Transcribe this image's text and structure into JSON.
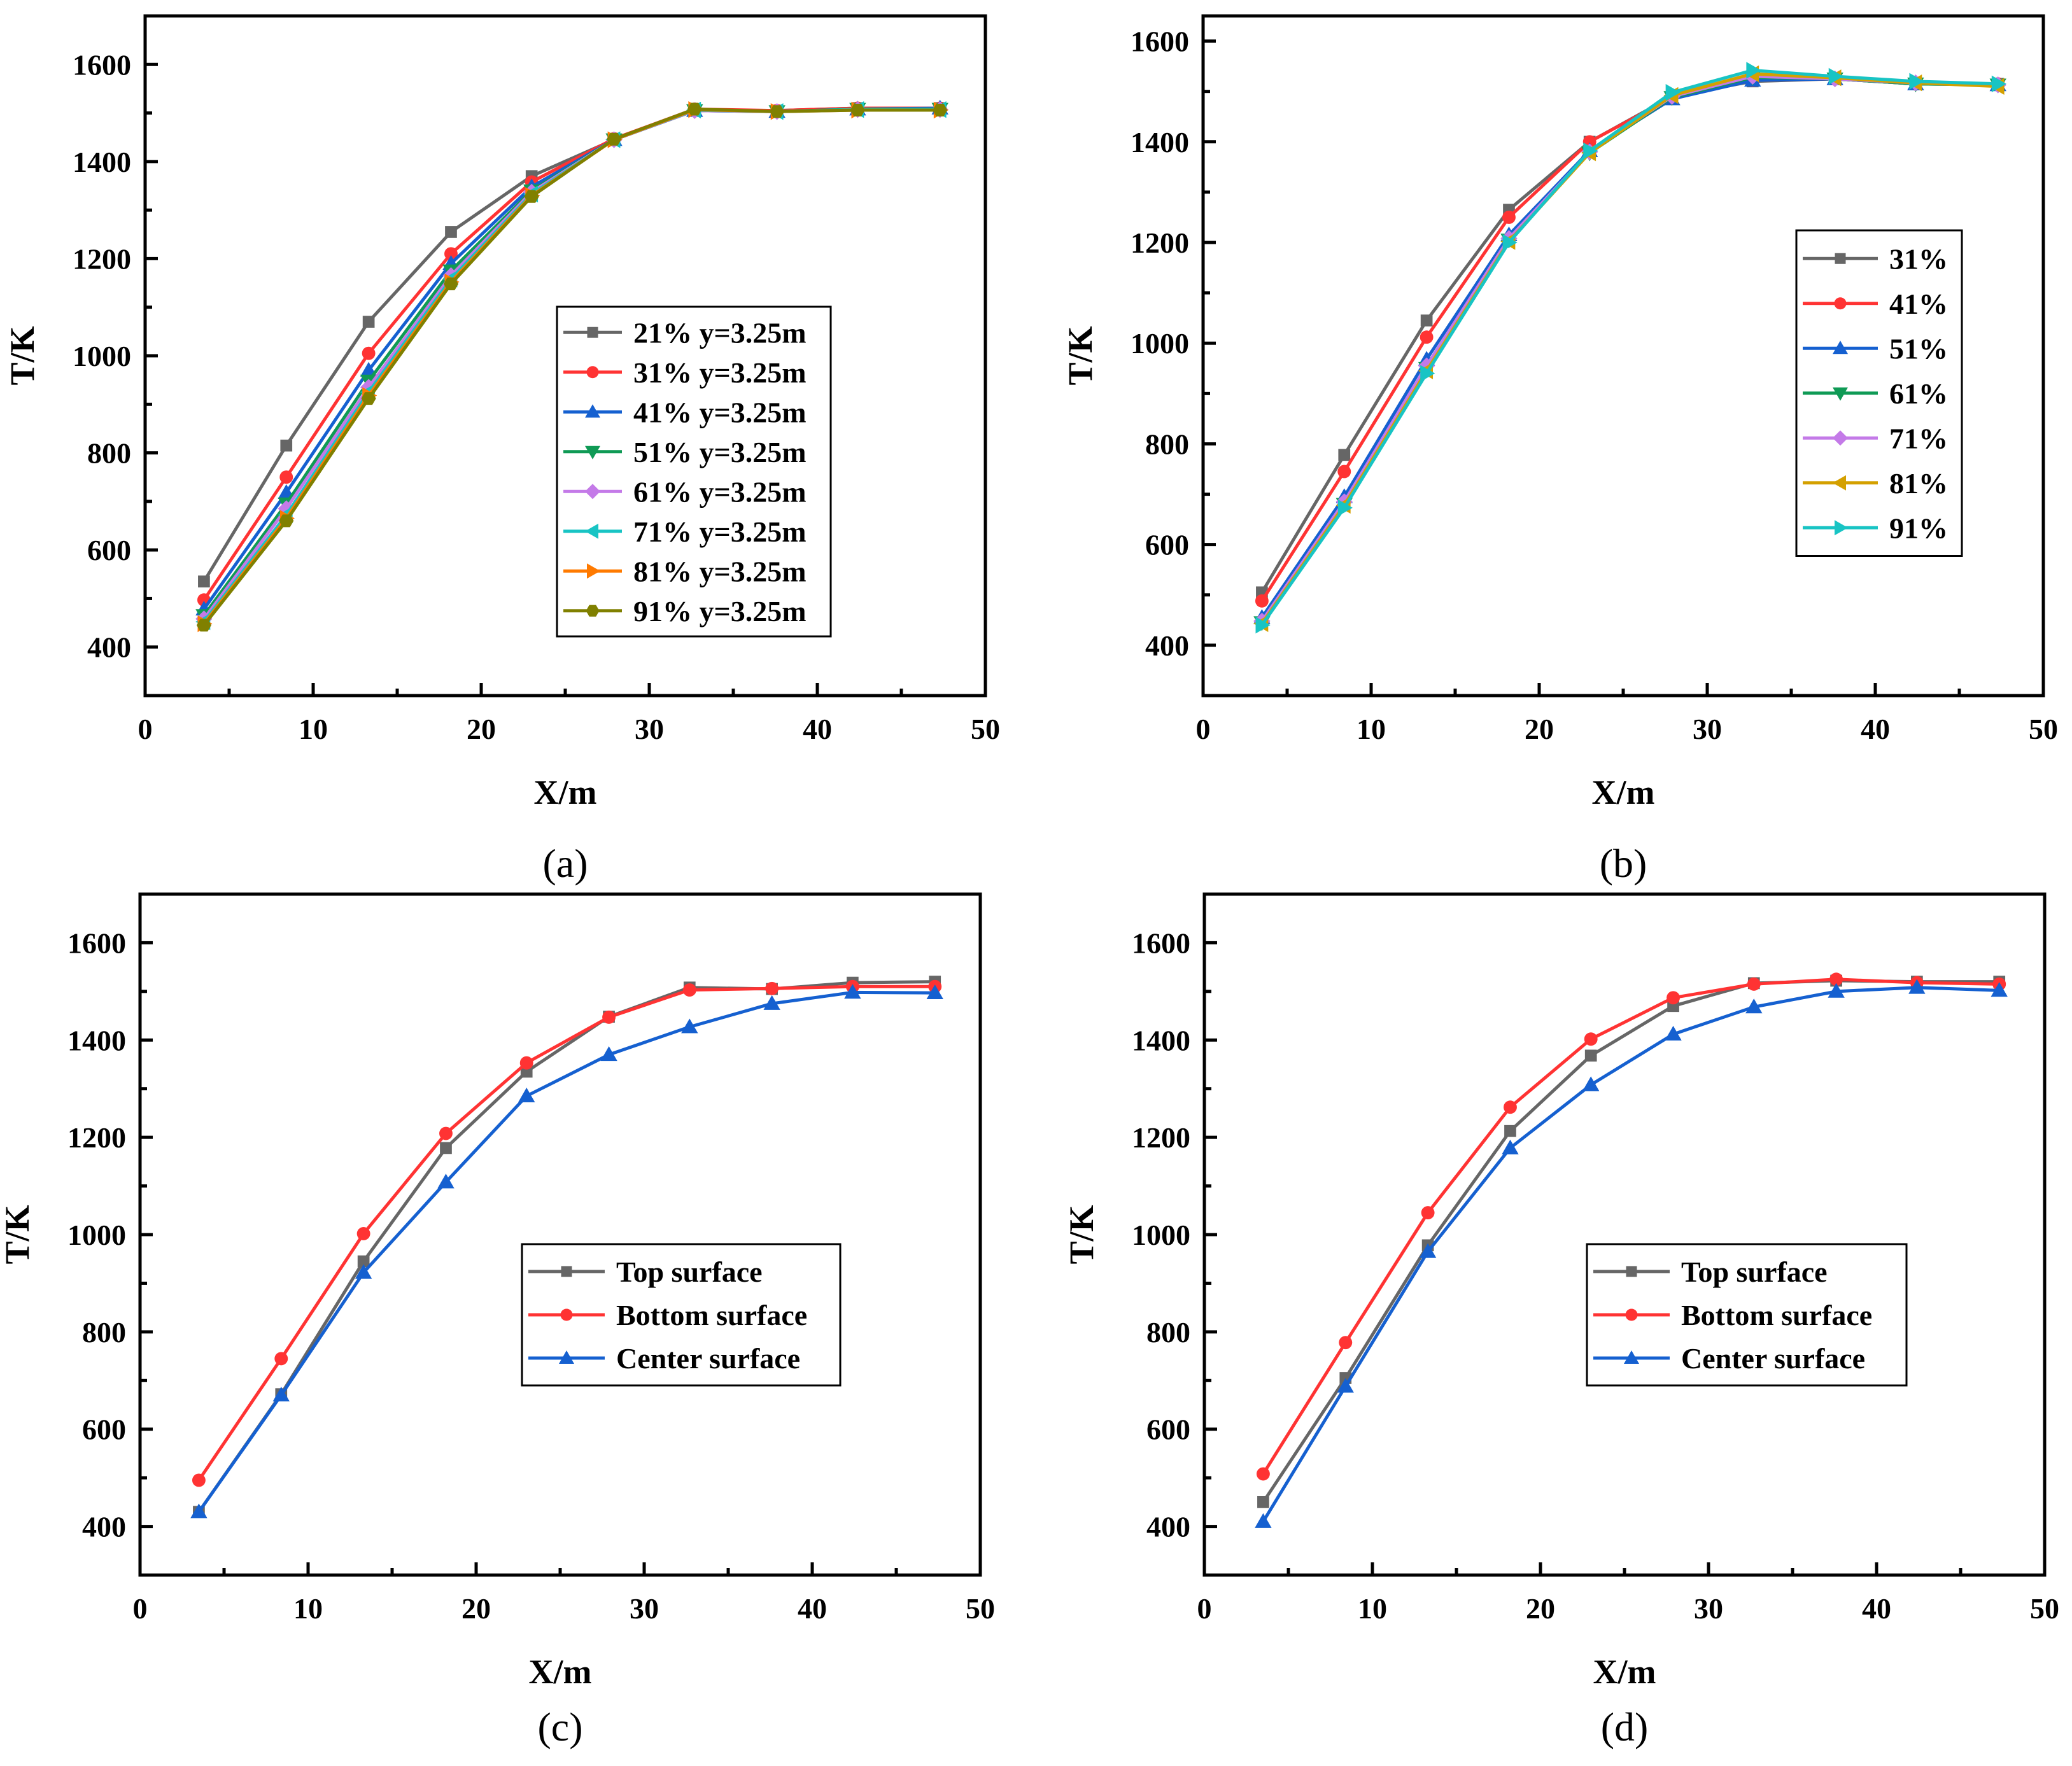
{
  "chart_data": [
    {
      "id": "a",
      "type": "line",
      "panel_label": "(a)",
      "xlabel": "X/m",
      "ylabel": "T/K",
      "xlim": [
        0,
        50
      ],
      "ylim": [
        300,
        1700
      ],
      "xticks": [
        "0",
        "10",
        "20",
        "30",
        "40",
        "50"
      ],
      "yticks": [
        "400",
        "600",
        "800",
        "1000",
        "1200",
        "1400",
        "1600"
      ],
      "legend_position": "center-right",
      "x": [
        3.5,
        8.4,
        13.3,
        18.2,
        23.0,
        27.9,
        32.7,
        37.6,
        42.4,
        47.3
      ],
      "series": [
        {
          "name": "21% y=3.25m",
          "color": "#666666",
          "marker": "square",
          "values": [
            535,
            815,
            1070,
            1255,
            1370,
            1445,
            1505,
            1505,
            1510,
            1510
          ]
        },
        {
          "name": "31% y=3.25m",
          "color": "#ff3333",
          "marker": "circle",
          "values": [
            497,
            750,
            1005,
            1210,
            1358,
            1447,
            1508,
            1505,
            1510,
            1510
          ]
        },
        {
          "name": "41% y=3.25m",
          "color": "#1560d0",
          "marker": "triangle-up",
          "values": [
            478,
            718,
            970,
            1190,
            1348,
            1445,
            1505,
            1503,
            1508,
            1510
          ]
        },
        {
          "name": "51% y=3.25m",
          "color": "#0f9a55",
          "marker": "triangle-down",
          "values": [
            465,
            695,
            948,
            1175,
            1340,
            1445,
            1505,
            1503,
            1508,
            1508
          ]
        },
        {
          "name": "61% y=3.25m",
          "color": "#c47ae8",
          "marker": "diamond",
          "values": [
            458,
            685,
            935,
            1165,
            1337,
            1445,
            1505,
            1503,
            1507,
            1507
          ]
        },
        {
          "name": "71% y=3.25m",
          "color": "#18c4c4",
          "marker": "triangle-left",
          "values": [
            452,
            672,
            925,
            1158,
            1333,
            1445,
            1506,
            1503,
            1507,
            1507
          ]
        },
        {
          "name": "81% y=3.25m",
          "color": "#ff7a00",
          "marker": "triangle-right",
          "values": [
            448,
            665,
            918,
            1152,
            1330,
            1445,
            1507,
            1503,
            1506,
            1506
          ]
        },
        {
          "name": "91% y=3.25m",
          "color": "#808000",
          "marker": "hexagon",
          "values": [
            445,
            660,
            912,
            1148,
            1328,
            1446,
            1508,
            1503,
            1506,
            1506
          ]
        }
      ]
    },
    {
      "id": "b",
      "type": "line",
      "panel_label": "(b)",
      "xlabel": "X/m",
      "ylabel": "T/K",
      "xlim": [
        0,
        50
      ],
      "ylim": [
        300,
        1650
      ],
      "xticks": [
        "0",
        "10",
        "20",
        "30",
        "40",
        "50"
      ],
      "yticks": [
        "400",
        "600",
        "800",
        "1000",
        "1200",
        "1400",
        "1600"
      ],
      "legend_position": "center-right",
      "x": [
        3.5,
        8.4,
        13.3,
        18.2,
        23.0,
        27.9,
        32.7,
        37.6,
        42.4,
        47.3
      ],
      "series": [
        {
          "name": "31%",
          "color": "#666666",
          "marker": "square",
          "values": [
            505,
            778,
            1045,
            1265,
            1400,
            1490,
            1520,
            1525,
            1515,
            1515
          ]
        },
        {
          "name": "41%",
          "color": "#ff3333",
          "marker": "circle",
          "values": [
            488,
            745,
            1012,
            1250,
            1400,
            1488,
            1522,
            1525,
            1515,
            1515
          ]
        },
        {
          "name": "51%",
          "color": "#1560d0",
          "marker": "triangle-up",
          "values": [
            455,
            695,
            968,
            1215,
            1382,
            1485,
            1522,
            1525,
            1515,
            1513
          ]
        },
        {
          "name": "61%",
          "color": "#0f9a55",
          "marker": "triangle-down",
          "values": [
            445,
            680,
            950,
            1205,
            1378,
            1488,
            1528,
            1525,
            1515,
            1513
          ]
        },
        {
          "name": "71%",
          "color": "#c47ae8",
          "marker": "diamond",
          "values": [
            448,
            685,
            955,
            1208,
            1380,
            1490,
            1530,
            1525,
            1517,
            1513
          ]
        },
        {
          "name": "81%",
          "color": "#d4a000",
          "marker": "triangle-left",
          "values": [
            443,
            678,
            945,
            1202,
            1378,
            1492,
            1535,
            1527,
            1517,
            1510
          ]
        },
        {
          "name": "91%",
          "color": "#18c4c4",
          "marker": "triangle-right",
          "values": [
            440,
            673,
            940,
            1200,
            1382,
            1498,
            1542,
            1530,
            1520,
            1515
          ]
        }
      ]
    },
    {
      "id": "c",
      "type": "line",
      "panel_label": "(c)",
      "xlabel": "X/m",
      "ylabel": "T/K",
      "xlim": [
        0,
        50
      ],
      "ylim": [
        300,
        1700
      ],
      "xticks": [
        "0",
        "10",
        "20",
        "30",
        "40",
        "50"
      ],
      "yticks": [
        "400",
        "600",
        "800",
        "1000",
        "1200",
        "1400",
        "1600"
      ],
      "legend_position": "lower-right",
      "x": [
        3.5,
        8.4,
        13.3,
        18.2,
        23.0,
        27.9,
        32.7,
        37.6,
        42.4,
        47.3
      ],
      "series": [
        {
          "name": "Top surface",
          "color": "#666666",
          "marker": "square",
          "values": [
            430,
            672,
            945,
            1178,
            1335,
            1448,
            1508,
            1505,
            1518,
            1520
          ]
        },
        {
          "name": "Bottom surface",
          "color": "#ff3333",
          "marker": "circle",
          "values": [
            495,
            745,
            1002,
            1208,
            1353,
            1447,
            1503,
            1506,
            1510,
            1510
          ]
        },
        {
          "name": "Center surface",
          "color": "#1560d0",
          "marker": "triangle-up",
          "values": [
            430,
            670,
            922,
            1108,
            1285,
            1370,
            1427,
            1475,
            1498,
            1497
          ]
        }
      ]
    },
    {
      "id": "d",
      "type": "line",
      "panel_label": "(d)",
      "xlabel": "X/m",
      "ylabel": "T/K",
      "xlim": [
        0,
        50
      ],
      "ylim": [
        300,
        1700
      ],
      "xticks": [
        "0",
        "10",
        "20",
        "30",
        "40",
        "50"
      ],
      "yticks": [
        "400",
        "600",
        "800",
        "1000",
        "1200",
        "1400",
        "1600"
      ],
      "legend_position": "lower-right",
      "x": [
        3.5,
        8.4,
        13.3,
        18.2,
        23.0,
        27.9,
        32.7,
        37.6,
        42.4,
        47.3
      ],
      "series": [
        {
          "name": "Top surface",
          "color": "#666666",
          "marker": "square",
          "values": [
            450,
            705,
            978,
            1213,
            1368,
            1470,
            1517,
            1522,
            1520,
            1520
          ]
        },
        {
          "name": "Bottom surface",
          "color": "#ff3333",
          "marker": "circle",
          "values": [
            508,
            778,
            1045,
            1262,
            1402,
            1487,
            1515,
            1525,
            1518,
            1515
          ]
        },
        {
          "name": "Center surface",
          "color": "#1560d0",
          "marker": "triangle-up",
          "values": [
            410,
            688,
            965,
            1178,
            1308,
            1412,
            1468,
            1500,
            1508,
            1502
          ]
        }
      ]
    }
  ]
}
